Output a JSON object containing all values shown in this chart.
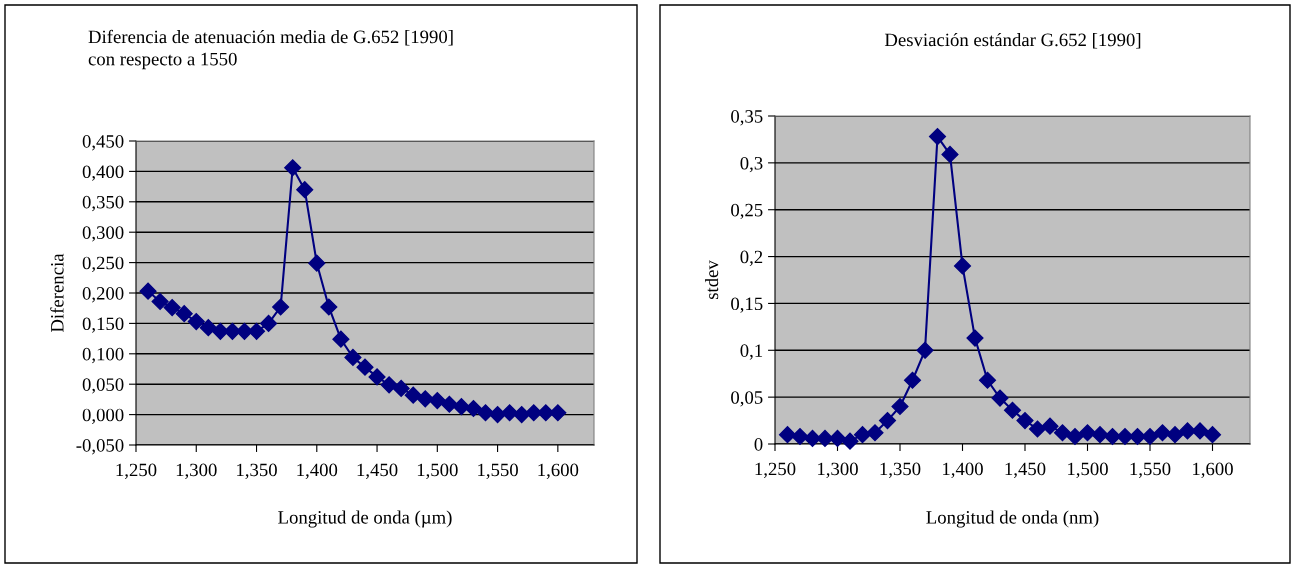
{
  "chart_data": [
    {
      "type": "line",
      "title": "Diferencia de atenuación media de G.652 [1990]\ncon respecto a 1550",
      "xlabel": "Longitud de onda (µm)",
      "ylabel": "Diferencia",
      "x": [
        1.26,
        1.27,
        1.28,
        1.29,
        1.3,
        1.31,
        1.32,
        1.33,
        1.34,
        1.35,
        1.36,
        1.37,
        1.38,
        1.39,
        1.4,
        1.41,
        1.42,
        1.43,
        1.44,
        1.45,
        1.46,
        1.47,
        1.48,
        1.49,
        1.5,
        1.51,
        1.52,
        1.53,
        1.54,
        1.55,
        1.56,
        1.57,
        1.58,
        1.59,
        1.6
      ],
      "series": [
        {
          "color": "#000080",
          "values": [
            0.203,
            0.186,
            0.176,
            0.166,
            0.153,
            0.143,
            0.137,
            0.137,
            0.137,
            0.137,
            0.15,
            0.177,
            0.406,
            0.37,
            0.249,
            0.177,
            0.124,
            0.094,
            0.078,
            0.062,
            0.049,
            0.043,
            0.032,
            0.026,
            0.023,
            0.017,
            0.013,
            0.01,
            0.003,
            0.0,
            0.003,
            0.0,
            0.003,
            0.003,
            0.003
          ]
        }
      ],
      "xlim": [
        1.25,
        1.63
      ],
      "xticks": [
        {
          "value": 1.25,
          "label": "1,250"
        },
        {
          "value": 1.3,
          "label": "1,300"
        },
        {
          "value": 1.35,
          "label": "1,350"
        },
        {
          "value": 1.4,
          "label": "1,400"
        },
        {
          "value": 1.45,
          "label": "1,450"
        },
        {
          "value": 1.5,
          "label": "1,500"
        },
        {
          "value": 1.55,
          "label": "1,550"
        },
        {
          "value": 1.6,
          "label": "1,600"
        }
      ],
      "ylim": [
        -0.05,
        0.45
      ],
      "yticks": [
        {
          "value": -0.05,
          "label": "-0,050"
        },
        {
          "value": 0,
          "label": "0,000"
        },
        {
          "value": 0.05,
          "label": "0,050"
        },
        {
          "value": 0.1,
          "label": "0,100"
        },
        {
          "value": 0.15,
          "label": "0,150"
        },
        {
          "value": 0.2,
          "label": "0,200"
        },
        {
          "value": 0.25,
          "label": "0,250"
        },
        {
          "value": 0.3,
          "label": "0,300"
        },
        {
          "value": 0.35,
          "label": "0,350"
        },
        {
          "value": 0.4,
          "label": "0,400"
        },
        {
          "value": 0.45,
          "label": "0,450"
        }
      ],
      "grid": "y",
      "marker": "diamond",
      "line_style": "solid"
    },
    {
      "type": "line",
      "title": "Desviación estándar G.652 [1990]",
      "xlabel": "Longitud de onda (nm)",
      "ylabel": "stdev",
      "x": [
        1.26,
        1.27,
        1.28,
        1.29,
        1.3,
        1.31,
        1.32,
        1.33,
        1.34,
        1.35,
        1.36,
        1.37,
        1.38,
        1.39,
        1.4,
        1.41,
        1.42,
        1.43,
        1.44,
        1.45,
        1.46,
        1.47,
        1.48,
        1.49,
        1.5,
        1.51,
        1.52,
        1.53,
        1.54,
        1.55,
        1.56,
        1.57,
        1.58,
        1.59,
        1.6
      ],
      "series": [
        {
          "color": "#000080",
          "values": [
            0.01,
            0.008,
            0.006,
            0.006,
            0.006,
            0.003,
            0.01,
            0.012,
            0.025,
            0.04,
            0.068,
            0.1,
            0.328,
            0.309,
            0.19,
            0.113,
            0.068,
            0.049,
            0.036,
            0.025,
            0.016,
            0.019,
            0.012,
            0.008,
            0.012,
            0.01,
            0.008,
            0.008,
            0.008,
            0.008,
            0.012,
            0.01,
            0.014,
            0.014,
            0.01
          ]
        }
      ],
      "xlim": [
        1.25,
        1.63
      ],
      "xticks": [
        {
          "value": 1.25,
          "label": "1,250"
        },
        {
          "value": 1.3,
          "label": "1,300"
        },
        {
          "value": 1.35,
          "label": "1,350"
        },
        {
          "value": 1.4,
          "label": "1,400"
        },
        {
          "value": 1.45,
          "label": "1,450"
        },
        {
          "value": 1.5,
          "label": "1,500"
        },
        {
          "value": 1.55,
          "label": "1,550"
        },
        {
          "value": 1.6,
          "label": "1,600"
        }
      ],
      "ylim": [
        0,
        0.35
      ],
      "yticks": [
        0,
        {
          "value": 0.05,
          "label": "0,05"
        },
        {
          "value": 0.1,
          "label": "0,1"
        },
        {
          "value": 0.15,
          "label": "0,15"
        },
        {
          "value": 0.2,
          "label": "0,2"
        },
        {
          "value": 0.25,
          "label": "0,25"
        },
        {
          "value": 0.3,
          "label": "0,3"
        },
        {
          "value": 0.35,
          "label": "0,35"
        }
      ],
      "grid": "y",
      "marker": "diamond",
      "line_style": "solid"
    }
  ]
}
